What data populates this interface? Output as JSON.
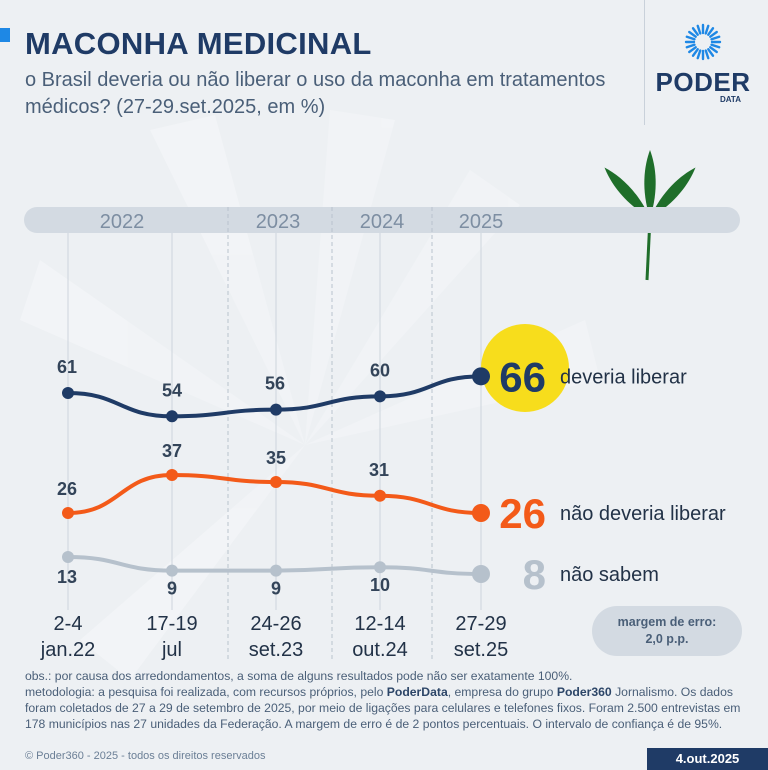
{
  "header": {
    "title": "MACONHA MEDICINAL",
    "subtitle": "o Brasil deveria ou não liberar o uso da maconha em tratamentos médicos? (27-29.set.2025, em %)"
  },
  "logo": {
    "word": "PODER",
    "sub": "DATA",
    "icon": "sunburst-logo-icon"
  },
  "chart_data": {
    "type": "line",
    "x_ticks": [
      {
        "line1": "2-4",
        "line2": "jan.22"
      },
      {
        "line1": "17-19",
        "line2": "jul"
      },
      {
        "line1": "24-26",
        "line2": "set.23"
      },
      {
        "line1": "12-14",
        "line2": "out.24"
      },
      {
        "line1": "27-29",
        "line2": "set.25"
      }
    ],
    "year_band": [
      "2022",
      "2023",
      "2024",
      "2025"
    ],
    "series": [
      {
        "name": "deveria liberar",
        "values": [
          61,
          54,
          56,
          60,
          66
        ],
        "color": "#1f3b66"
      },
      {
        "name": "não deveria liberar",
        "values": [
          26,
          37,
          35,
          31,
          26
        ],
        "color": "#f35a19"
      },
      {
        "name": "não sabem",
        "values": [
          13,
          9,
          9,
          10,
          8
        ],
        "color": "#b6c1cc"
      }
    ],
    "highlight_color": "#f7dd1c"
  },
  "margin_box": {
    "line1": "margem de erro:",
    "line2": "2,0 p.p."
  },
  "notes": {
    "line1": "obs.: por causa dos arredondamentos, a soma de alguns resultados pode não ser exatamente 100%.",
    "meth_a": "metodologia: a pesquisa foi realizada, com recursos próprios, pelo ",
    "meth_b": "PoderData",
    "meth_c": ", empresa do grupo ",
    "meth_d": "Poder360",
    "meth_e": " Jornalismo. Os dados foram coletados de 27 a 29 de setembro de 2025, por meio de ligações para celulares e telefones fixos. Foram 2.500 entrevistas em 178 municípios nas 27 unidades da Federação. A margem de erro é de 2 pontos percentuais. O intervalo de confiança é de 95%."
  },
  "footer": {
    "copyright": "© Poder360 - 2025 - todos os direitos reservados",
    "date": "4.out.2025"
  }
}
